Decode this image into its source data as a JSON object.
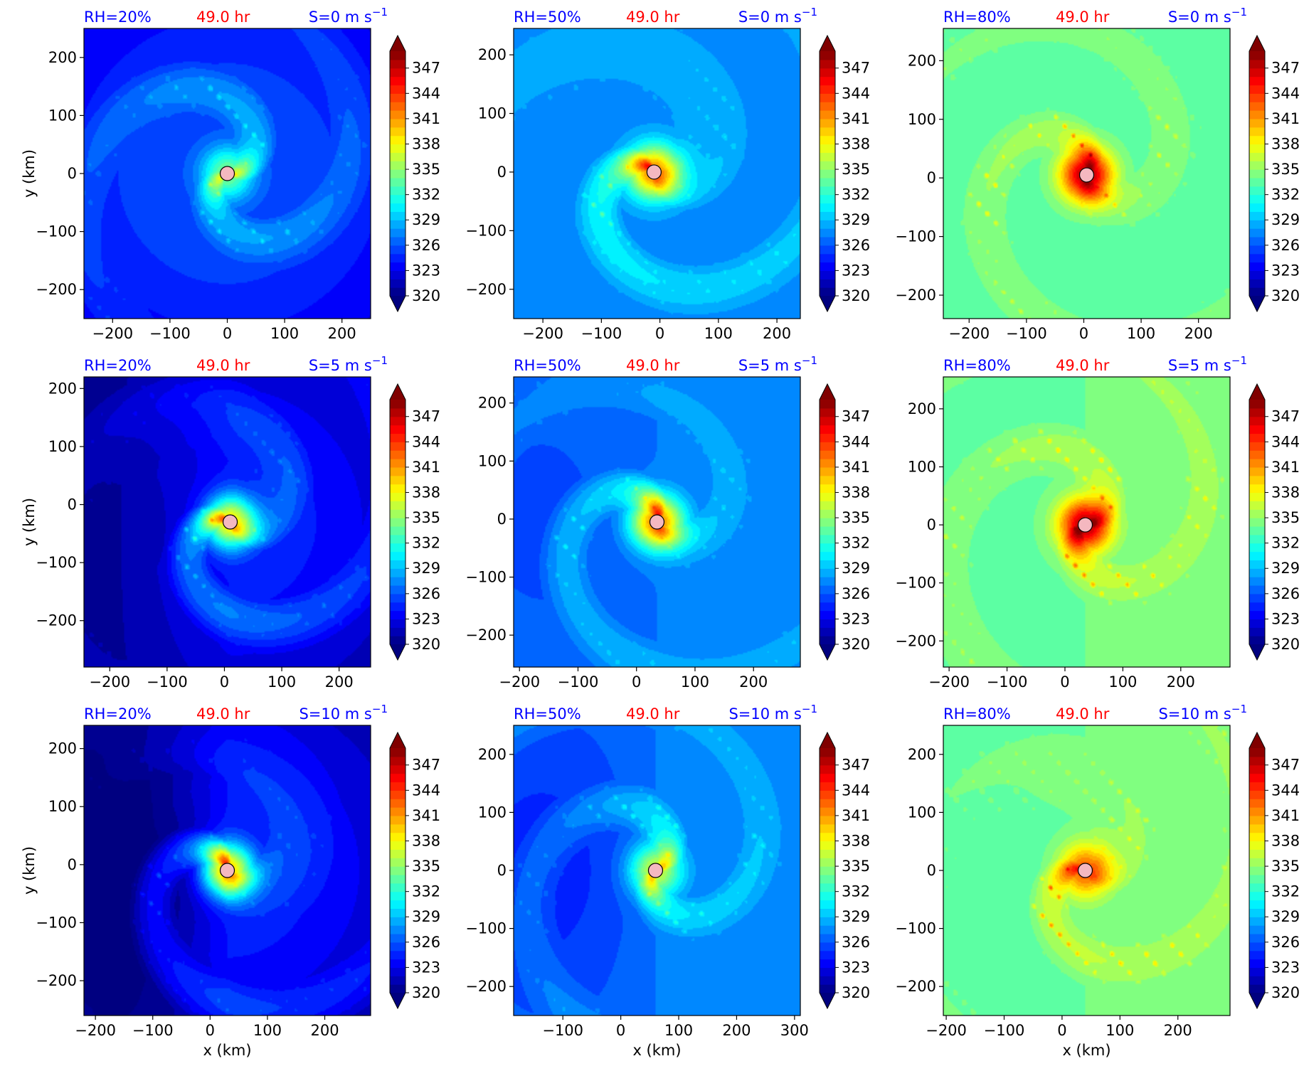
{
  "figure": {
    "row_headers": [
      {
        "shear": "S=0 m s",
        "sup": "−1"
      },
      {
        "shear": "S=5 m s",
        "sup": "−1"
      },
      {
        "shear": "S=10 m s",
        "sup": "−1"
      }
    ],
    "col_headers": [
      "RH=20%",
      "RH=50%",
      "RH=80%"
    ],
    "time_label": "49.0 hr",
    "ylabel": "y (km)",
    "xlabel": "x (km)",
    "colors": {
      "header_blue": "#0000ff",
      "time_red": "#ff0000",
      "center_marker": "#f4b8c0"
    }
  },
  "chart_data": [
    {
      "type": "heatmap",
      "panel": "RH=20%, S=0",
      "rh": 20,
      "shear": 0,
      "time_hr": 49.0,
      "xlim": [
        -250,
        250
      ],
      "ylim": [
        -250,
        250
      ],
      "xticks": [
        -200,
        -100,
        0,
        100,
        200
      ],
      "yticks": [
        -200,
        -100,
        0,
        100,
        200
      ],
      "center": [
        0,
        0
      ],
      "env_value": 325.5,
      "core_max": 334.5,
      "spiral_amp": 2.5,
      "colorbar": {
        "min": 320,
        "max": 349,
        "ticks": [
          320,
          323,
          326,
          329,
          332,
          335,
          338,
          341,
          344,
          347
        ],
        "extend": "both"
      }
    },
    {
      "type": "heatmap",
      "panel": "RH=50%, S=0",
      "rh": 50,
      "shear": 0,
      "time_hr": 49.0,
      "xlim": [
        -250,
        240
      ],
      "ylim": [
        -250,
        245
      ],
      "xticks": [
        -200,
        -100,
        0,
        100,
        200
      ],
      "yticks": [
        -200,
        -100,
        0,
        100,
        200
      ],
      "center": [
        -10,
        0
      ],
      "env_value": 327.5,
      "core_max": 342,
      "spiral_amp": 2.5,
      "colorbar": {
        "min": 320,
        "max": 349,
        "ticks": [
          320,
          323,
          326,
          329,
          332,
          335,
          338,
          341,
          344,
          347
        ],
        "extend": "both"
      }
    },
    {
      "type": "heatmap",
      "panel": "RH=80%, S=0",
      "rh": 80,
      "shear": 0,
      "time_hr": 49.0,
      "xlim": [
        -245,
        255
      ],
      "ylim": [
        -240,
        255
      ],
      "xticks": [
        -200,
        -100,
        0,
        100,
        200
      ],
      "yticks": [
        -200,
        -100,
        0,
        100,
        200
      ],
      "center": [
        5,
        5
      ],
      "env_value": 333.5,
      "core_max": 348,
      "spiral_amp": 1.5,
      "colorbar": {
        "min": 320,
        "max": 349,
        "ticks": [
          320,
          323,
          326,
          329,
          332,
          335,
          338,
          341,
          344,
          347
        ],
        "extend": "both"
      }
    },
    {
      "type": "heatmap",
      "panel": "RH=20%, S=5",
      "rh": 20,
      "shear": 5,
      "time_hr": 49.0,
      "xlim": [
        -245,
        255
      ],
      "ylim": [
        -280,
        220
      ],
      "xticks": [
        -200,
        -100,
        0,
        100,
        200
      ],
      "yticks": [
        -200,
        -100,
        0,
        100,
        200
      ],
      "center": [
        10,
        -30
      ],
      "env_value": 324,
      "core_max": 339,
      "spiral_amp": 3,
      "colorbar": {
        "min": 320,
        "max": 349,
        "ticks": [
          320,
          323,
          326,
          329,
          332,
          335,
          338,
          341,
          344,
          347
        ],
        "extend": "both"
      }
    },
    {
      "type": "heatmap",
      "panel": "RH=50%, S=5",
      "rh": 50,
      "shear": 5,
      "time_hr": 49.0,
      "xlim": [
        -210,
        280
      ],
      "ylim": [
        -255,
        245
      ],
      "xticks": [
        -200,
        -100,
        0,
        100,
        200
      ],
      "yticks": [
        -200,
        -100,
        0,
        100,
        200
      ],
      "center": [
        35,
        -5
      ],
      "env_value": 327,
      "core_max": 342,
      "spiral_amp": 2.5,
      "colorbar": {
        "min": 320,
        "max": 349,
        "ticks": [
          320,
          323,
          326,
          329,
          332,
          335,
          338,
          341,
          344,
          347
        ],
        "extend": "both"
      }
    },
    {
      "type": "heatmap",
      "panel": "RH=80%, S=5",
      "rh": 80,
      "shear": 5,
      "time_hr": 49.0,
      "xlim": [
        -210,
        285
      ],
      "ylim": [
        -245,
        255
      ],
      "xticks": [
        -200,
        -100,
        0,
        100,
        200
      ],
      "yticks": [
        -200,
        -100,
        0,
        100,
        200
      ],
      "center": [
        35,
        0
      ],
      "env_value": 334,
      "core_max": 348,
      "spiral_amp": 1.8,
      "colorbar": {
        "min": 320,
        "max": 349,
        "ticks": [
          320,
          323,
          326,
          329,
          332,
          335,
          338,
          341,
          344,
          347
        ],
        "extend": "both"
      }
    },
    {
      "type": "heatmap",
      "panel": "RH=20%, S=10",
      "rh": 20,
      "shear": 10,
      "time_hr": 49.0,
      "xlim": [
        -220,
        280
      ],
      "ylim": [
        -260,
        240
      ],
      "xticks": [
        -200,
        -100,
        0,
        100,
        200
      ],
      "yticks": [
        -200,
        -100,
        0,
        100,
        200
      ],
      "center": [
        30,
        -10
      ],
      "env_value": 324,
      "core_max": 340,
      "spiral_amp": 3,
      "colorbar": {
        "min": 320,
        "max": 349,
        "ticks": [
          320,
          323,
          326,
          329,
          332,
          335,
          338,
          341,
          344,
          347
        ],
        "extend": "both"
      }
    },
    {
      "type": "heatmap",
      "panel": "RH=50%, S=10",
      "rh": 50,
      "shear": 10,
      "time_hr": 49.0,
      "xlim": [
        -185,
        310
      ],
      "ylim": [
        -250,
        250
      ],
      "xticks": [
        -100,
        0,
        100,
        200,
        300
      ],
      "yticks": [
        -200,
        -100,
        0,
        100,
        200
      ],
      "center": [
        60,
        0
      ],
      "env_value": 327,
      "core_max": 337,
      "spiral_amp": 2.5,
      "colorbar": {
        "min": 320,
        "max": 349,
        "ticks": [
          320,
          323,
          326,
          329,
          332,
          335,
          338,
          341,
          344,
          347
        ],
        "extend": "both"
      }
    },
    {
      "type": "heatmap",
      "panel": "RH=80%, S=10",
      "rh": 80,
      "shear": 10,
      "time_hr": 49.0,
      "xlim": [
        -205,
        290
      ],
      "ylim": [
        -250,
        250
      ],
      "xticks": [
        -200,
        -100,
        0,
        100,
        200
      ],
      "yticks": [
        -200,
        -100,
        0,
        100,
        200
      ],
      "center": [
        40,
        0
      ],
      "env_value": 334,
      "core_max": 343,
      "spiral_amp": 1.8,
      "colorbar": {
        "min": 320,
        "max": 349,
        "ticks": [
          320,
          323,
          326,
          329,
          332,
          335,
          338,
          341,
          344,
          347
        ],
        "extend": "both"
      }
    }
  ]
}
